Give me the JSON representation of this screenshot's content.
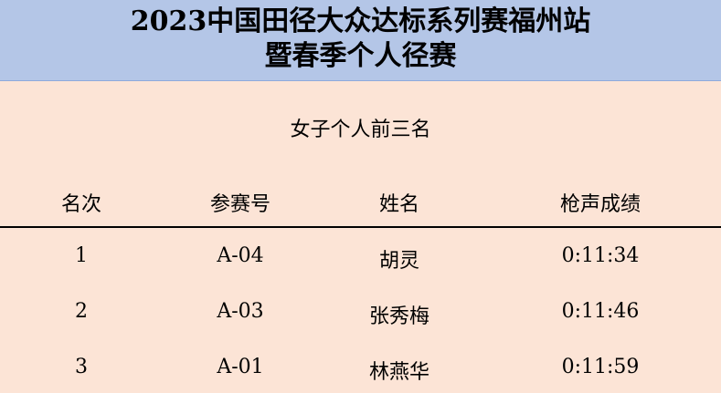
{
  "title": {
    "line1": "2023中国田径大众达标系列赛福州站",
    "line2": "暨春季个人径赛"
  },
  "subtitle": "女子个人前三名",
  "columns": [
    "名次",
    "参赛号",
    "姓名",
    "枪声成绩"
  ],
  "rows": [
    [
      "1",
      "A-04",
      "胡灵",
      "0:11:34"
    ],
    [
      "2",
      "A-03",
      "张秀梅",
      "0:11:46"
    ],
    [
      "3",
      "A-01",
      "林燕华",
      "0:11:59"
    ]
  ]
}
